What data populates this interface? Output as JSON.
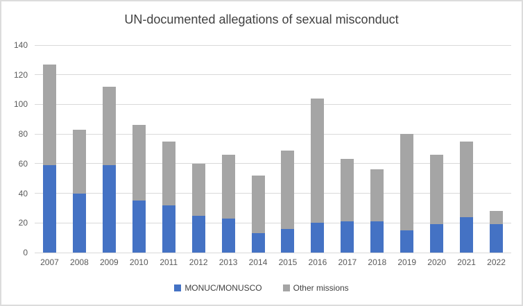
{
  "chart_data": {
    "type": "bar",
    "stacked": true,
    "title": "UN-documented allegations of sexual misconduct",
    "xlabel": "",
    "ylabel": "",
    "categories": [
      "2007",
      "2008",
      "2009",
      "2010",
      "2011",
      "2012",
      "2013",
      "2014",
      "2015",
      "2016",
      "2017",
      "2018",
      "2019",
      "2020",
      "2021",
      "2022"
    ],
    "series": [
      {
        "name": "MONUC/MONUSCO",
        "color": "#4472C4",
        "values": [
          59,
          40,
          59,
          35,
          32,
          25,
          23,
          13,
          16,
          20,
          21,
          21,
          15,
          19,
          24,
          19
        ]
      },
      {
        "name": "Other missions",
        "color": "#A5A5A5",
        "values": [
          68,
          43,
          53,
          51,
          43,
          35,
          43,
          39,
          53,
          84,
          42,
          35,
          65,
          47,
          51,
          9
        ]
      }
    ],
    "totals": [
      127,
      83,
      112,
      86,
      75,
      60,
      66,
      52,
      69,
      104,
      63,
      56,
      80,
      66,
      75,
      28
    ],
    "ylim": [
      0,
      140
    ],
    "yticks": [
      0,
      20,
      40,
      60,
      80,
      100,
      120,
      140
    ],
    "grid": true,
    "legend_position": "bottom",
    "style_colors": {
      "title_text": "#404040",
      "axis_text": "#595959",
      "gridline": "#D9D9D9",
      "frame_border": "#DCDCDC",
      "background": "#FFFFFF"
    }
  }
}
